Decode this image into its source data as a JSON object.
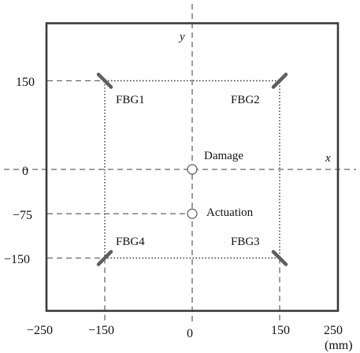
{
  "colors": {
    "frame": "#3a3a3a",
    "dash": "#666666",
    "dot": "#333333",
    "sensor": "#5e5e5e",
    "text": "#111111"
  },
  "axes": {
    "x_name": "x",
    "y_name": "y",
    "unit": "(mm)",
    "x_ticks": [
      {
        "value": -250,
        "label": "−250"
      },
      {
        "value": -150,
        "label": "−150"
      },
      {
        "value": 0,
        "label": "0"
      },
      {
        "value": 150,
        "label": "150"
      },
      {
        "value": 250,
        "label": "250"
      }
    ],
    "y_ticks": [
      {
        "value": 150,
        "label": "150"
      },
      {
        "value": 0,
        "label": "0"
      },
      {
        "value": -75,
        "label": "−75"
      },
      {
        "value": -150,
        "label": "−150"
      }
    ]
  },
  "plate": {
    "xmin": -250,
    "xmax": 250,
    "ymin": -250,
    "ymax": 250
  },
  "sensors": [
    {
      "id": "fbg1",
      "label": "FBG1",
      "x": -150,
      "y": 150,
      "orientation": "backslash"
    },
    {
      "id": "fbg2",
      "label": "FBG2",
      "x": 150,
      "y": 150,
      "orientation": "slash"
    },
    {
      "id": "fbg3",
      "label": "FBG3",
      "x": 150,
      "y": -150,
      "orientation": "backslash"
    },
    {
      "id": "fbg4",
      "label": "FBG4",
      "x": -150,
      "y": -150,
      "orientation": "slash"
    }
  ],
  "points": [
    {
      "id": "damage",
      "label": "Damage",
      "x": 0,
      "y": 0
    },
    {
      "id": "actuation",
      "label": "Actuation",
      "x": 0,
      "y": -75
    }
  ]
}
